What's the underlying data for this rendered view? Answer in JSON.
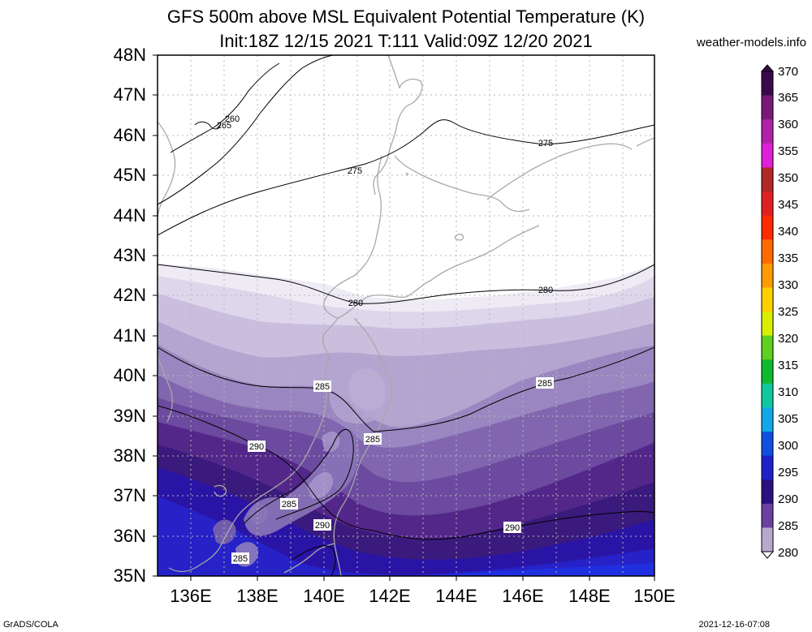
{
  "title": {
    "line1": "GFS 500m above MSL Equivalent Potential Temperature (K)",
    "line2": "Init:18Z 12/15 2021 T:111 Valid:09Z 12/20 2021"
  },
  "site": "weather-models.info",
  "lat_labels": [
    "48N",
    "47N",
    "46N",
    "45N",
    "44N",
    "43N",
    "42N",
    "41N",
    "40N",
    "39N",
    "38N",
    "37N",
    "36N",
    "35N"
  ],
  "lon_labels": [
    "136E",
    "138E",
    "140E",
    "142E",
    "144E",
    "146E",
    "148E",
    "150E"
  ],
  "contour_labels": {
    "c260": "260",
    "c265": "265",
    "c275a": "275",
    "c275b": "275",
    "c280a": "280",
    "c280b": "280",
    "c285a": "285",
    "c285b": "285",
    "c285c": "285",
    "c285d": "285",
    "c285e": "285",
    "c290a": "290",
    "c290b": "290",
    "c290c": "290"
  },
  "colorbar": {
    "labels": [
      "370",
      "365",
      "360",
      "355",
      "350",
      "345",
      "340",
      "335",
      "330",
      "325",
      "320",
      "315",
      "310",
      "305",
      "300",
      "295",
      "290",
      "285",
      "280"
    ],
    "colors": [
      "#3a0a4a",
      "#7a1a78",
      "#b020a8",
      "#e020d8",
      "#b02828",
      "#e02020",
      "#ff2a00",
      "#ff6a00",
      "#ff9a00",
      "#ffd000",
      "#d8f000",
      "#60d020",
      "#10b830",
      "#10c8a0",
      "#10a8e8",
      "#1050e0",
      "#2020c8",
      "#2a1080",
      "#6a40a0",
      "#b8a8d0"
    ]
  },
  "footer_left": "GrADS/COLA",
  "footer_right": "2021-12-16-07:08"
}
